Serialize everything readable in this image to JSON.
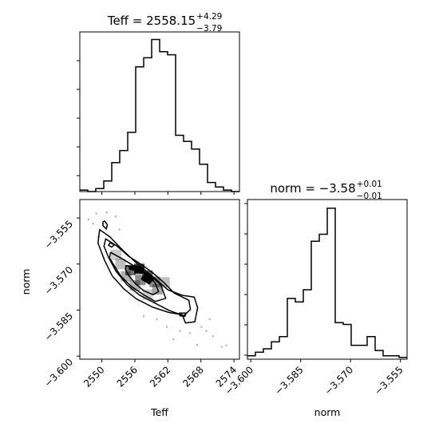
{
  "chart_data": [
    {
      "type": "histogram",
      "panel": "Teff",
      "title": {
        "main": "Teff = 2558.15",
        "plus": "+4.29",
        "minus": "−3.79"
      },
      "xlim": [
        2546,
        2575
      ],
      "bins": [
        2546,
        2547.45,
        2548.9,
        2550.35,
        2551.8,
        2553.25,
        2554.7,
        2556.15,
        2557.6,
        2559.05,
        2560.5,
        2561.95,
        2563.4,
        2564.85,
        2566.3,
        2567.75,
        2569.2,
        2570.65,
        2572.1,
        2573.55,
        2575
      ],
      "counts": [
        1,
        0,
        2,
        7,
        19,
        27,
        39,
        82,
        88,
        100,
        92,
        90,
        37,
        33,
        28,
        18,
        6,
        3,
        1,
        0
      ],
      "ymax": 105
    },
    {
      "type": "histogram",
      "panel": "norm",
      "title": {
        "main": "norm = −3.58",
        "plus": "+0.01",
        "minus": "−0.01"
      },
      "xlim": [
        -3.601,
        -3.553
      ],
      "bins": [
        -3.601,
        -3.5986,
        -3.5962,
        -3.5938,
        -3.5914,
        -3.589,
        -3.5866,
        -3.5842,
        -3.5818,
        -3.5794,
        -3.577,
        -3.5746,
        -3.5722,
        -3.5698,
        -3.5674,
        -3.565,
        -3.5626,
        -3.5602,
        -3.5578,
        -3.5554,
        -3.553
      ],
      "counts": [
        2,
        4,
        6,
        10,
        13,
        35,
        33,
        40,
        68,
        72,
        87,
        21,
        20,
        8,
        8,
        13,
        5,
        2,
        2,
        1
      ],
      "ymax": 92
    },
    {
      "type": "scatter",
      "panel": "Teff-norm",
      "xlabel": "Teff",
      "ylabel": "norm",
      "xlim": [
        2546,
        2575
      ],
      "ylim": [
        -3.601,
        -3.549
      ],
      "xticks": [
        "2550",
        "2556",
        "2562",
        "2568",
        "2574"
      ],
      "yticks": [
        "−3.555",
        "−3.570",
        "−3.585",
        "−3.600"
      ],
      "contours": [
        [
          [
            2549.6,
            -3.5588
          ],
          [
            2551.5,
            -3.5612
          ],
          [
            2553.8,
            -3.5655
          ],
          [
            2556.0,
            -3.5692
          ],
          [
            2558.2,
            -3.5725
          ],
          [
            2560.0,
            -3.5752
          ],
          [
            2562.0,
            -3.5784
          ],
          [
            2564.6,
            -3.5802
          ],
          [
            2566.8,
            -3.5808
          ],
          [
            2567.4,
            -3.5842
          ],
          [
            2566.9,
            -3.5888
          ],
          [
            2565.2,
            -3.5892
          ],
          [
            2564.6,
            -3.5865
          ],
          [
            2562.2,
            -3.5858
          ],
          [
            2559.3,
            -3.5841
          ],
          [
            2556.3,
            -3.5814
          ],
          [
            2554.0,
            -3.5781
          ],
          [
            2551.9,
            -3.5739
          ],
          [
            2550.5,
            -3.5688
          ],
          [
            2549.3,
            -3.5632
          ]
        ],
        [
          [
            2550.7,
            -3.5618
          ],
          [
            2552.8,
            -3.5642
          ],
          [
            2554.9,
            -3.5675
          ],
          [
            2557.2,
            -3.5702
          ],
          [
            2559.2,
            -3.5728
          ],
          [
            2561.3,
            -3.5761
          ],
          [
            2563.1,
            -3.5794
          ],
          [
            2565.8,
            -3.5818
          ],
          [
            2566.1,
            -3.5848
          ],
          [
            2564.9,
            -3.5868
          ],
          [
            2562.3,
            -3.5852
          ],
          [
            2559.6,
            -3.5827
          ],
          [
            2556.8,
            -3.5801
          ],
          [
            2554.6,
            -3.5768
          ],
          [
            2552.6,
            -3.5724
          ],
          [
            2551.2,
            -3.5678
          ],
          [
            2550.4,
            -3.5642
          ]
        ],
        [
          [
            2551.6,
            -3.5662
          ],
          [
            2553.6,
            -3.5682
          ],
          [
            2556.0,
            -3.5708
          ],
          [
            2558.6,
            -3.5734
          ],
          [
            2560.7,
            -3.5768
          ],
          [
            2561.6,
            -3.5812
          ],
          [
            2559.7,
            -3.5822
          ],
          [
            2557.4,
            -3.5798
          ],
          [
            2555.3,
            -3.5772
          ],
          [
            2553.4,
            -3.5738
          ],
          [
            2552.2,
            -3.5704
          ],
          [
            2551.4,
            -3.568
          ]
        ],
        [
          [
            2554.4,
            -3.5705
          ],
          [
            2556.2,
            -3.5714
          ],
          [
            2558.2,
            -3.5732
          ],
          [
            2559.7,
            -3.5762
          ],
          [
            2560.3,
            -3.579
          ],
          [
            2559.3,
            -3.58
          ],
          [
            2557.6,
            -3.5787
          ],
          [
            2556.1,
            -3.5764
          ],
          [
            2554.9,
            -3.5738
          ],
          [
            2554.3,
            -3.5718
          ]
        ],
        [
          [
            2550.5,
            -3.556
          ],
          [
            2551.0,
            -3.5572
          ],
          [
            2550.8,
            -3.5586
          ],
          [
            2550.2,
            -3.5575
          ],
          [
            2550.2,
            -3.5563
          ]
        ],
        [
          [
            2551.5,
            -3.5631
          ],
          [
            2552.3,
            -3.5637
          ],
          [
            2551.8,
            -3.5645
          ],
          [
            2551.2,
            -3.5639
          ]
        ],
        [
          [
            2564.1,
            -3.586
          ],
          [
            2565.3,
            -3.586
          ],
          [
            2565.1,
            -3.587
          ],
          [
            2564.2,
            -3.5869
          ]
        ]
      ],
      "cores": [
        [
          [
            2556.3,
            -3.5706
          ],
          [
            2557.6,
            -3.5713
          ],
          [
            2557.4,
            -3.573
          ],
          [
            2556.0,
            -3.5726
          ]
        ],
        [
          [
            2558.0,
            -3.5728
          ],
          [
            2559.5,
            -3.5747
          ],
          [
            2558.6,
            -3.5765
          ],
          [
            2557.2,
            -3.5749
          ]
        ],
        [
          [
            2555.0,
            -3.5706
          ],
          [
            2556.1,
            -3.571
          ],
          [
            2556.2,
            -3.5722
          ],
          [
            2555.0,
            -3.5717
          ]
        ]
      ],
      "density_cells": [
        [
          2555.2,
          -3.572,
          0.55
        ],
        [
          2556.8,
          -3.5716,
          0.75
        ],
        [
          2558.3,
          -3.5738,
          0.6
        ],
        [
          2559.6,
          -3.5758,
          0.45
        ],
        [
          2557.0,
          -3.5752,
          0.45
        ],
        [
          2560.1,
          -3.5783,
          0.35
        ],
        [
          2554.4,
          -3.574,
          0.3
        ],
        [
          2556.0,
          -3.577,
          0.3
        ],
        [
          2553.4,
          -3.57,
          0.25
        ],
        [
          2561.4,
          -3.576,
          0.25
        ],
        [
          2552.6,
          -3.567,
          0.2
        ],
        [
          2558.3,
          -3.58,
          0.2
        ]
      ],
      "outliers": [
        [
          2549.0,
          -3.5535
        ],
        [
          2550.9,
          -3.5532
        ],
        [
          2548.4,
          -3.5568
        ],
        [
          2552.5,
          -3.5545
        ],
        [
          2549.3,
          -3.5612
        ],
        [
          2553.2,
          -3.5588
        ],
        [
          2547.6,
          -3.5555
        ],
        [
          2568.1,
          -3.5905
        ],
        [
          2570.2,
          -3.5935
        ],
        [
          2571.8,
          -3.597
        ],
        [
          2572.6,
          -3.5965
        ],
        [
          2569.6,
          -3.588
        ],
        [
          2564.2,
          -3.5918
        ],
        [
          2566.0,
          -3.5925
        ],
        [
          2561.8,
          -3.5905
        ],
        [
          2567.3,
          -3.5963
        ],
        [
          2560.0,
          -3.588
        ],
        [
          2563.0,
          -3.5945
        ],
        [
          2557.6,
          -3.587
        ],
        [
          2569.0,
          -3.5918
        ]
      ]
    }
  ]
}
